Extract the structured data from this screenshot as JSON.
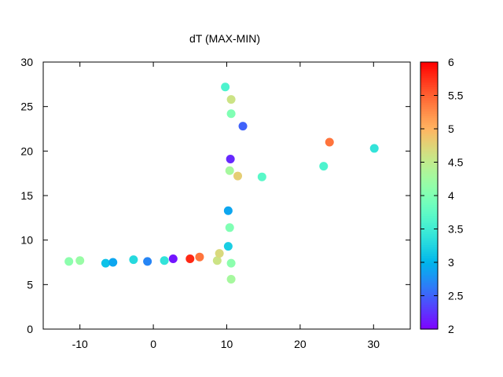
{
  "chart_data": {
    "type": "scatter",
    "title": "dT (MAX-MIN)",
    "xlabel": "",
    "ylabel": "",
    "xlim": [
      -15,
      35
    ],
    "ylim": [
      0,
      30
    ],
    "x_ticks": [
      "-10",
      "0",
      "10",
      "20",
      "30"
    ],
    "y_ticks": [
      "0",
      "5",
      "10",
      "15",
      "20",
      "25",
      "30"
    ],
    "colorbar": {
      "range": [
        2,
        6
      ],
      "ticks": [
        "2",
        "2.5",
        "3",
        "3.5",
        "4",
        "4.5",
        "5",
        "5.5",
        "6"
      ],
      "palette": "rainbow"
    },
    "grid": false,
    "points": [
      {
        "x": -11.5,
        "y": 7.6,
        "c": 4.1
      },
      {
        "x": -10.0,
        "y": 7.7,
        "c": 4.2
      },
      {
        "x": -6.5,
        "y": 7.4,
        "c": 3.1
      },
      {
        "x": -5.5,
        "y": 7.5,
        "c": 2.9
      },
      {
        "x": -2.7,
        "y": 7.8,
        "c": 3.3
      },
      {
        "x": -0.8,
        "y": 7.6,
        "c": 2.7
      },
      {
        "x": 1.5,
        "y": 7.7,
        "c": 3.4
      },
      {
        "x": 2.7,
        "y": 7.9,
        "c": 2.1
      },
      {
        "x": 5.0,
        "y": 7.9,
        "c": 5.8
      },
      {
        "x": 6.3,
        "y": 8.1,
        "c": 5.4
      },
      {
        "x": 8.7,
        "y": 7.7,
        "c": 4.6
      },
      {
        "x": 9.0,
        "y": 8.5,
        "c": 4.7
      },
      {
        "x": 10.2,
        "y": 9.3,
        "c": 3.2
      },
      {
        "x": 10.6,
        "y": 7.4,
        "c": 4.1
      },
      {
        "x": 10.6,
        "y": 5.6,
        "c": 4.3
      },
      {
        "x": 10.4,
        "y": 11.4,
        "c": 4.0
      },
      {
        "x": 10.2,
        "y": 13.3,
        "c": 2.9
      },
      {
        "x": 10.4,
        "y": 17.8,
        "c": 4.3
      },
      {
        "x": 11.5,
        "y": 17.2,
        "c": 4.8
      },
      {
        "x": 14.8,
        "y": 17.1,
        "c": 3.7
      },
      {
        "x": 10.5,
        "y": 19.1,
        "c": 2.2
      },
      {
        "x": 12.2,
        "y": 22.8,
        "c": 2.5
      },
      {
        "x": 10.6,
        "y": 24.2,
        "c": 4.0
      },
      {
        "x": 10.6,
        "y": 25.8,
        "c": 4.6
      },
      {
        "x": 9.8,
        "y": 27.2,
        "c": 3.6
      },
      {
        "x": 23.2,
        "y": 18.3,
        "c": 3.6
      },
      {
        "x": 24.0,
        "y": 21.0,
        "c": 5.4
      },
      {
        "x": 30.1,
        "y": 20.3,
        "c": 3.4
      }
    ]
  }
}
